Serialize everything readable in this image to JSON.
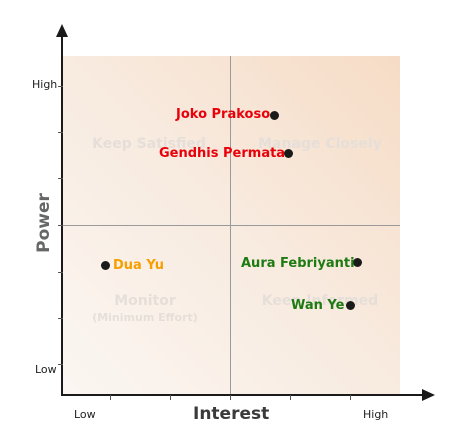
{
  "axes": {
    "x_title": "Interest",
    "y_title": "Power",
    "x_low": "Low",
    "x_high": "High",
    "y_low": "Low",
    "y_high": "High"
  },
  "quadrants": {
    "top_left": "Keep Satisfied",
    "top_right": "Manage Closely",
    "bottom_left": "Monitor",
    "bottom_left_sub": "(Minimum Effort)",
    "bottom_right": "Keep Informed"
  },
  "stakeholders": [
    {
      "name": "Joko Prakoso",
      "color": "#e8000a"
    },
    {
      "name": "Gendhis Permata",
      "color": "#e8000a"
    },
    {
      "name": "Dua Yu",
      "color": "#f5a000"
    },
    {
      "name": "Aura Febriyanti",
      "color": "#1e7a12"
    },
    {
      "name": "Wan Ye",
      "color": "#1e7a12"
    }
  ]
}
